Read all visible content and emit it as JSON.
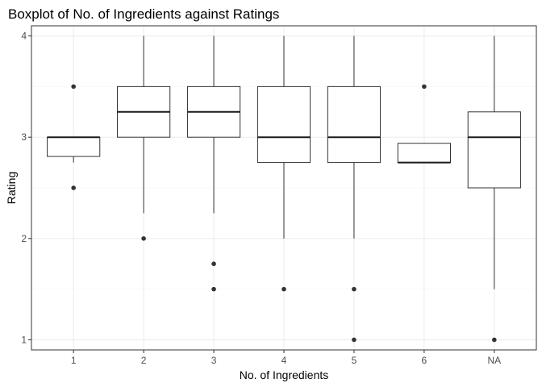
{
  "chart_data": {
    "type": "boxplot",
    "title": "Boxplot of No. of Ingredients against Ratings",
    "xlabel": "No. of Ingredients",
    "ylabel": "Rating",
    "ylim": [
      0.9,
      4.1
    ],
    "yticks": [
      1,
      2,
      3,
      4
    ],
    "grid": true,
    "categories": [
      "1",
      "2",
      "3",
      "4",
      "5",
      "6",
      "NA"
    ],
    "boxes": [
      {
        "category": "1",
        "whisker_low": 2.75,
        "q1": 2.81,
        "median": 3.0,
        "q3": 3.0,
        "whisker_high": 3.0,
        "outliers": [
          3.5,
          2.5
        ]
      },
      {
        "category": "2",
        "whisker_low": 2.25,
        "q1": 3.0,
        "median": 3.25,
        "q3": 3.5,
        "whisker_high": 4.0,
        "outliers": [
          2.0
        ]
      },
      {
        "category": "3",
        "whisker_low": 2.25,
        "q1": 3.0,
        "median": 3.25,
        "q3": 3.5,
        "whisker_high": 4.0,
        "outliers": [
          1.75,
          1.5
        ]
      },
      {
        "category": "4",
        "whisker_low": 2.0,
        "q1": 2.75,
        "median": 3.0,
        "q3": 3.5,
        "whisker_high": 4.0,
        "outliers": [
          1.5
        ]
      },
      {
        "category": "5",
        "whisker_low": 2.0,
        "q1": 2.75,
        "median": 3.0,
        "q3": 3.5,
        "whisker_high": 4.0,
        "outliers": [
          1.5,
          1.0
        ]
      },
      {
        "category": "6",
        "whisker_low": 2.75,
        "q1": 2.75,
        "median": 2.75,
        "q3": 2.94,
        "whisker_high": 2.94,
        "outliers": [
          3.5
        ]
      },
      {
        "category": "NA",
        "whisker_low": 1.5,
        "q1": 2.5,
        "median": 3.0,
        "q3": 3.25,
        "whisker_high": 4.0,
        "outliers": [
          1.0
        ]
      }
    ]
  }
}
